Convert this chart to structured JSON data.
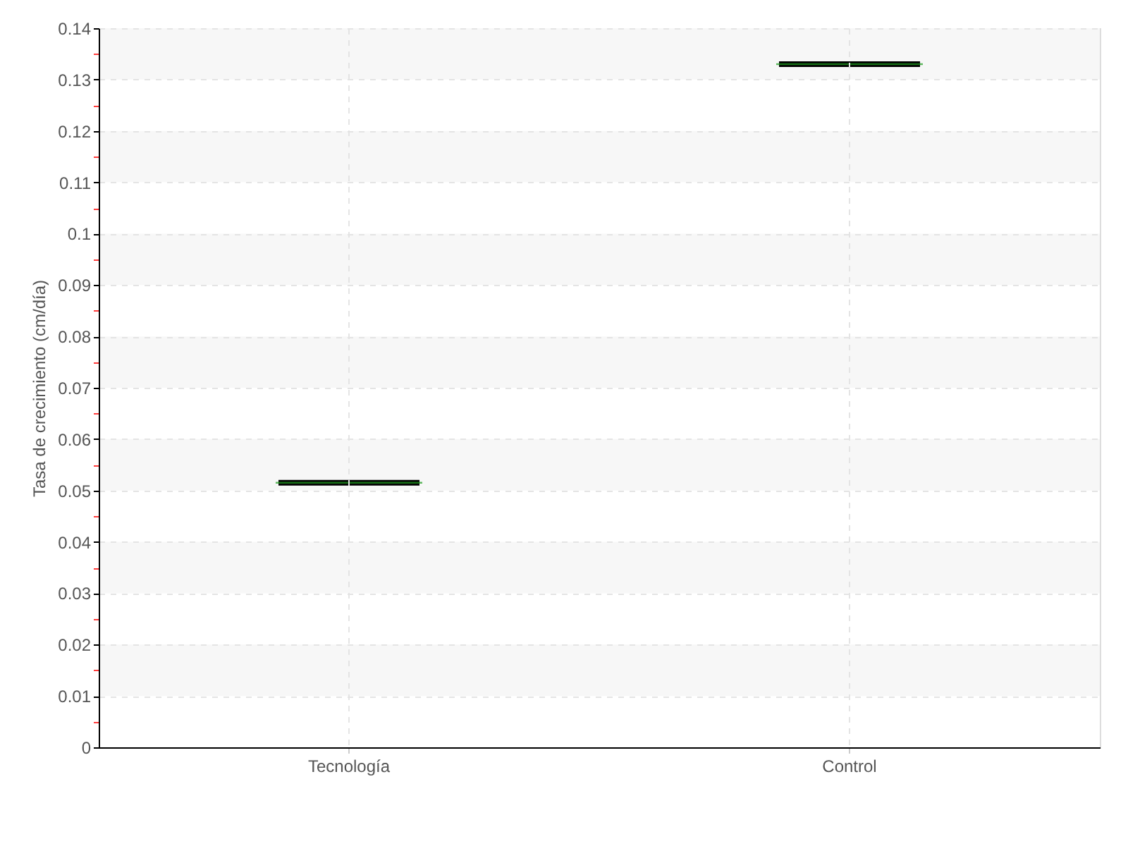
{
  "chart_data": {
    "type": "box",
    "ylabel": "Tasa de crecimiento (cm/día)",
    "categories": [
      "Tecnología",
      "Control"
    ],
    "series": [
      {
        "color": "#1f9e1f",
        "boxes": [
          {
            "low": 0.0515,
            "q1": 0.0515,
            "median": 0.0515,
            "q3": 0.0515,
            "high": 0.0515
          },
          {
            "low": 0.133,
            "q1": 0.133,
            "median": 0.133,
            "q3": 0.133,
            "high": 0.133
          }
        ]
      }
    ],
    "ylim": [
      0,
      0.14
    ],
    "yticks": [
      0,
      {
        "value": 0.005,
        "label": null
      },
      0.01,
      {
        "value": 0.015,
        "label": null
      },
      0.02,
      {
        "value": 0.025,
        "label": null
      },
      0.03,
      {
        "value": 0.035,
        "label": null
      },
      0.04,
      {
        "value": 0.045,
        "label": null
      },
      0.05,
      {
        "value": 0.055,
        "label": null
      },
      0.06,
      {
        "value": 0.065,
        "label": null
      },
      0.07,
      {
        "value": 0.075,
        "label": null
      },
      0.08,
      {
        "value": 0.085,
        "label": null
      },
      0.09,
      {
        "value": 0.095,
        "label": null
      },
      0.1,
      {
        "value": 0.105,
        "label": null
      },
      0.11,
      {
        "value": 0.115,
        "label": null
      },
      0.12,
      {
        "value": 0.125,
        "label": null
      },
      0.13,
      {
        "value": 0.135,
        "label": null
      },
      0.14
    ],
    "grid": true,
    "bands": [
      {
        "axis": "y",
        "from": 0.01,
        "to": 0.02,
        "color": "#f7f7f7"
      },
      {
        "axis": "y",
        "from": 0.03,
        "to": 0.04,
        "color": "#f7f7f7"
      },
      {
        "axis": "y",
        "from": 0.05,
        "to": 0.06,
        "color": "#f7f7f7"
      },
      {
        "axis": "y",
        "from": 0.07,
        "to": 0.08,
        "color": "#f7f7f7"
      },
      {
        "axis": "y",
        "from": 0.09,
        "to": 0.1,
        "color": "#f7f7f7"
      },
      {
        "axis": "y",
        "from": 0.11,
        "to": 0.12,
        "color": "#f7f7f7"
      },
      {
        "axis": "y",
        "from": 0.13,
        "to": 0.14,
        "color": "#f7f7f7"
      }
    ]
  }
}
